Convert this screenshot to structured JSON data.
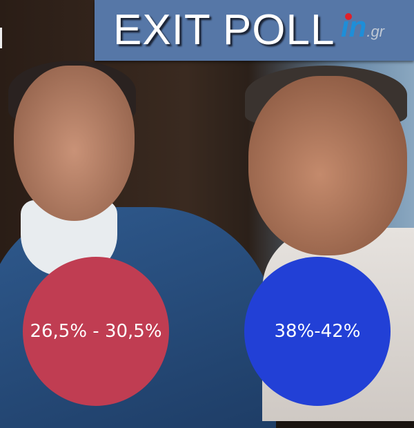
{
  "header": {
    "title": "EXIT POLL",
    "logo_text": "in.gr"
  },
  "results": [
    {
      "range": "26,5% - 30,5%",
      "color": "#c03d52"
    },
    {
      "range": "38%-42%",
      "color": "#2240d6"
    }
  ],
  "colors": {
    "banner": "#5677a7"
  }
}
